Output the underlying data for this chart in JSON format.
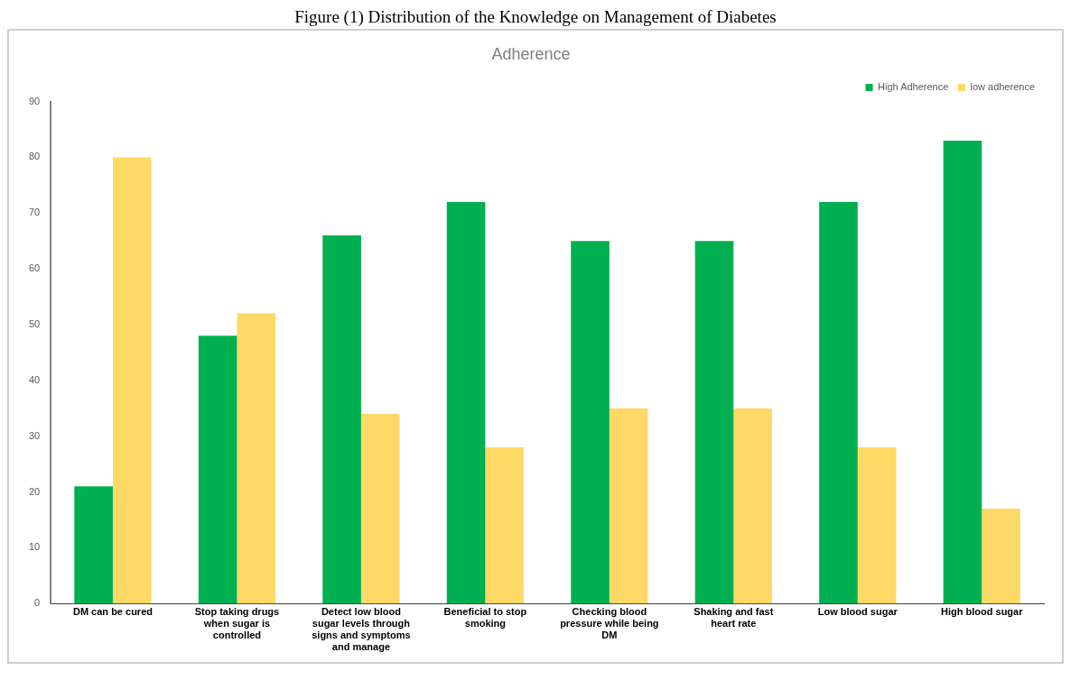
{
  "chart_data": {
    "type": "bar",
    "title": "Adherence",
    "annotations": [
      "Figure (1) Distribution of the Knowledge on Management of Diabetes"
    ],
    "categories": [
      "DM can be cured",
      "Stop taking drugs when sugar is controlled",
      "Detect low blood sugar levels through signs and symptoms and manage",
      "Beneficial to stop smoking",
      "Checking blood pressure while being DM",
      "Shaking and fast heart rate",
      "Low blood sugar",
      "High blood sugar"
    ],
    "series": [
      {
        "name": "High Adherence",
        "color": "#00b050",
        "values": [
          21,
          48,
          66,
          72,
          65,
          65,
          72,
          83
        ]
      },
      {
        "name": "low adherence",
        "color": "#ffd966",
        "values": [
          80,
          52,
          34,
          28,
          35,
          35,
          28,
          17
        ]
      }
    ],
    "ylim": [
      0,
      90
    ],
    "yticks": [
      0,
      10,
      20,
      30,
      40,
      50,
      60,
      70,
      80,
      90
    ],
    "grid": false,
    "legend": "top right"
  }
}
